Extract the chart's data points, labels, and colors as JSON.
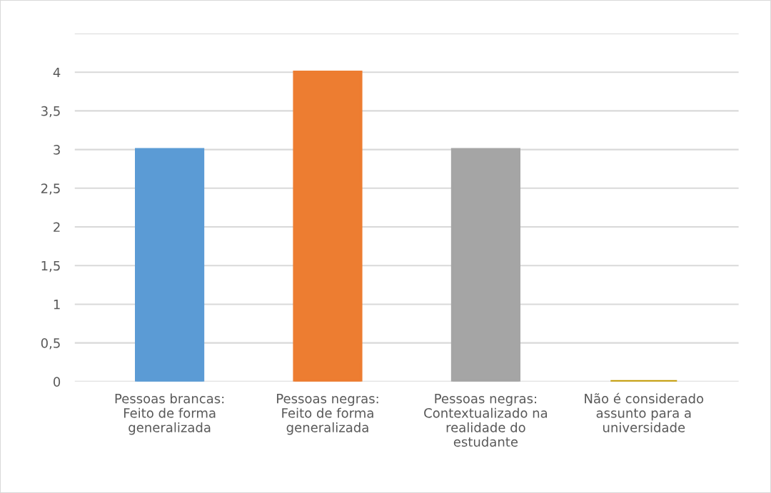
{
  "chart_data": {
    "type": "bar",
    "categories": [
      "Pessoas brancas:\nFeito de forma\ngeneralizada",
      "Pessoas negras:\nFeito de forma\ngeneralizada",
      "Pessoas negras:\nContextualizado na\nrealidade do\nestudante",
      "Não é considerado\nassunto para a\nuniversidade"
    ],
    "values": [
      3,
      4,
      3,
      0
    ],
    "colors": [
      "#5b9bd5",
      "#ed7d31",
      "#a5a5a5",
      "#c49a00"
    ],
    "ylim": [
      0,
      4.5
    ],
    "yticks": [
      0,
      {
        "value": 0.5,
        "label": "0,5"
      },
      1,
      {
        "value": 1.5,
        "label": "1,5"
      },
      2,
      {
        "value": 2.5,
        "label": "2,5"
      },
      3,
      {
        "value": 3.5,
        "label": "3,5"
      },
      4,
      {
        "value": 4.5,
        "label": null
      }
    ],
    "grid": "y"
  }
}
